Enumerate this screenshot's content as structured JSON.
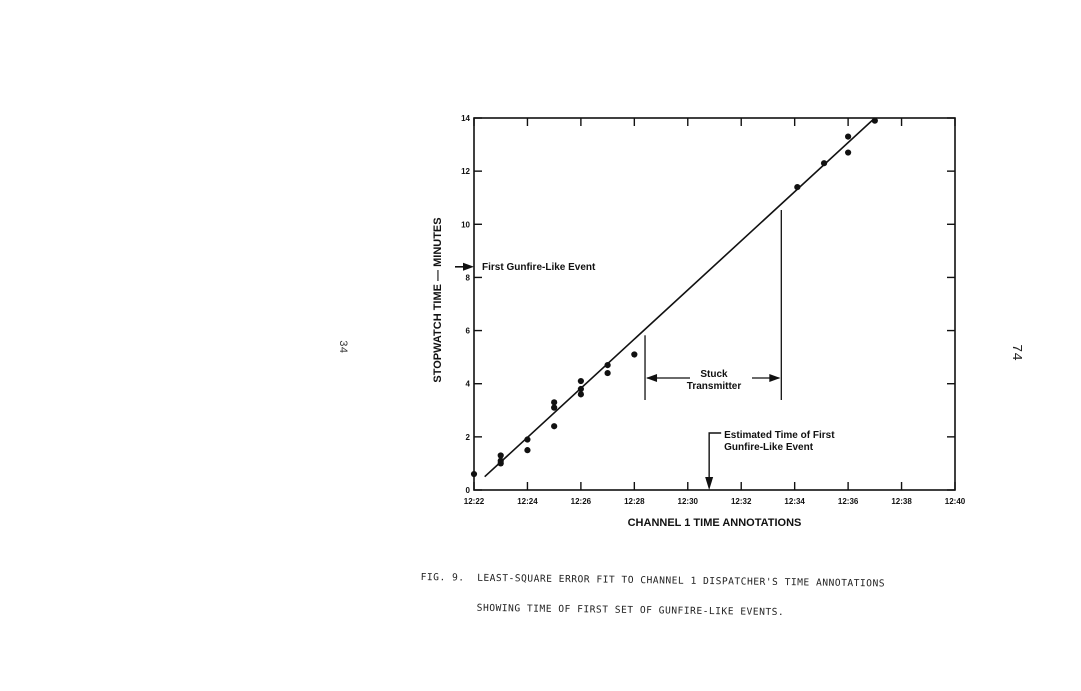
{
  "page": {
    "caption_line1": "FIG. 9.  LEAST-SQUARE ERROR FIT TO CHANNEL 1 DISPATCHER'S TIME ANNOTATIONS",
    "caption_line2": "         SHOWING TIME OF FIRST SET OF GUNFIRE-LIKE EVENTS.",
    "page_number_left": "34",
    "page_number_right": "74"
  },
  "chart_data": {
    "type": "scatter",
    "title": "",
    "xlabel": "CHANNEL 1 TIME ANNOTATIONS",
    "ylabel": "STOPWATCH TIME — MINUTES",
    "x_unit": "minutes after 12:00",
    "xlim": [
      22,
      40
    ],
    "ylim": [
      0,
      14
    ],
    "x_ticks": [
      22,
      24,
      26,
      28,
      30,
      32,
      34,
      36,
      38,
      40
    ],
    "x_tick_labels": [
      "12:22",
      "12:24",
      "12:26",
      "12:28",
      "12:30",
      "12:32",
      "12:34",
      "12:36",
      "12:38",
      "12:40"
    ],
    "y_ticks": [
      0,
      2,
      4,
      6,
      8,
      10,
      12,
      14
    ],
    "y_tick_labels": [
      "0",
      "2",
      "4",
      "6",
      "8",
      "10",
      "12",
      "14"
    ],
    "grid": false,
    "points": [
      {
        "x": 22.0,
        "y": 0.6
      },
      {
        "x": 23.0,
        "y": 1.3
      },
      {
        "x": 23.0,
        "y": 1.1
      },
      {
        "x": 23.0,
        "y": 1.0
      },
      {
        "x": 24.0,
        "y": 1.9
      },
      {
        "x": 24.0,
        "y": 1.5
      },
      {
        "x": 25.0,
        "y": 3.3
      },
      {
        "x": 25.0,
        "y": 3.1
      },
      {
        "x": 25.0,
        "y": 2.4
      },
      {
        "x": 26.0,
        "y": 4.1
      },
      {
        "x": 26.0,
        "y": 3.8
      },
      {
        "x": 26.0,
        "y": 3.6
      },
      {
        "x": 27.0,
        "y": 4.7
      },
      {
        "x": 27.0,
        "y": 4.4
      },
      {
        "x": 28.0,
        "y": 5.1
      },
      {
        "x": 34.1,
        "y": 11.4
      },
      {
        "x": 35.1,
        "y": 12.3
      },
      {
        "x": 36.0,
        "y": 13.3
      },
      {
        "x": 36.0,
        "y": 12.7
      },
      {
        "x": 37.0,
        "y": 13.9
      }
    ],
    "fit_line": {
      "x1": 22.4,
      "y1": 0.5,
      "x2": 37.0,
      "y2": 14.0
    },
    "annotations": {
      "first_event": {
        "label": "First Gunfire-Like Event",
        "y": 8.4
      },
      "stuck": {
        "label_line1": "Stuck",
        "label_line2": "Transmitter",
        "x_start": 28.4,
        "x_end": 33.5
      },
      "estimated": {
        "label_line1": "Estimated Time of First",
        "label_line2": "Gunfire-Like Event",
        "x": 30.8
      }
    }
  }
}
